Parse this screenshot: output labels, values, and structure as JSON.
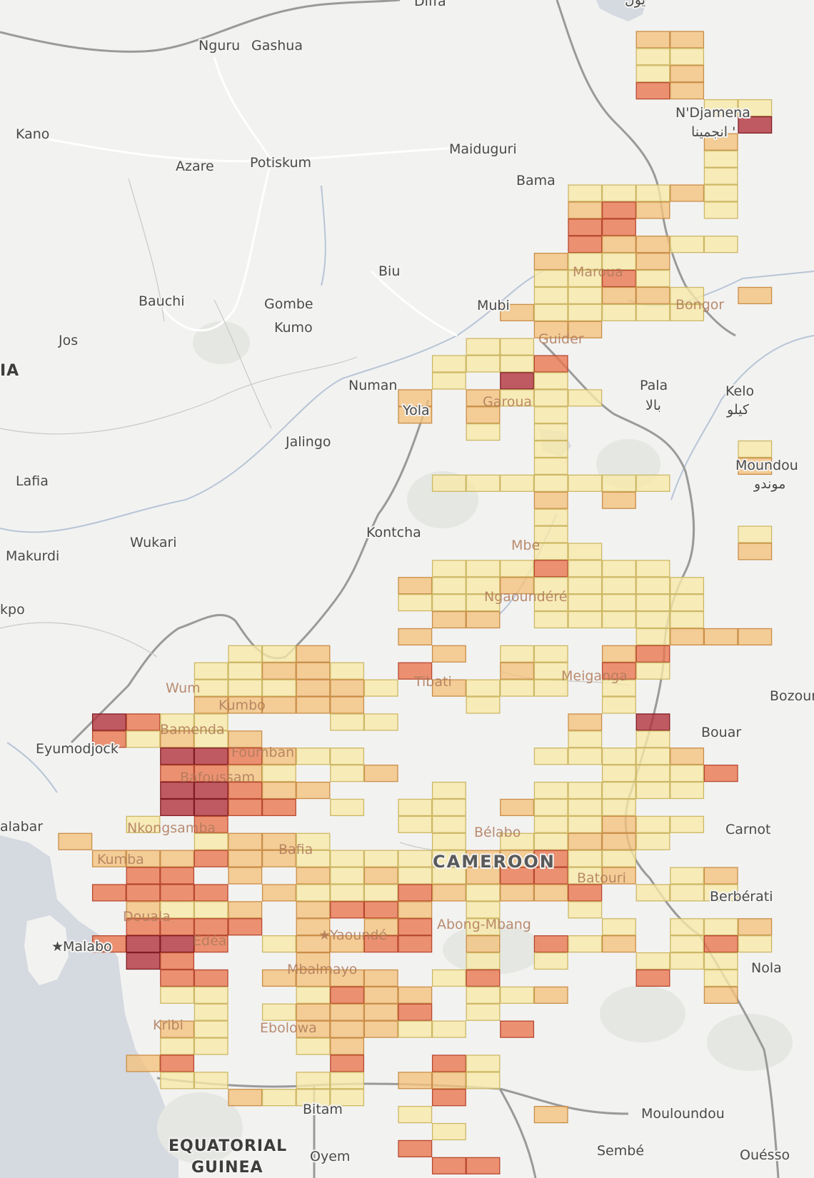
{
  "map": {
    "colors": {
      "land": "#f2f2f1",
      "water": "#d5d9e0",
      "border": "#9a9a9a",
      "river": "#b8c5d6",
      "road": "#ffffff",
      "scale": [
        "#f9e9a8",
        "#f4c27c",
        "#e9764e",
        "#b2303a"
      ],
      "cell_stroke": [
        "#cdb866",
        "#c98e48",
        "#b8482f",
        "#7f1e24"
      ]
    },
    "labels": {
      "nguru": "Nguru",
      "gashua": "Gashua",
      "kano": "Kano",
      "azare": "Azare",
      "potiskum": "Potiskum",
      "maiduguri": "Maiduguri",
      "bama": "Bama",
      "ndjamena": "N'Djamena",
      "ndjamena_ar": "انجمينا '",
      "biu": "Biu",
      "bauchi": "Bauchi",
      "gombe": "Gombe",
      "kumo": "Kumo",
      "jos": "Jos",
      "nia": "IA",
      "mubi": "Mubi",
      "maroua": "Maroua",
      "bongor": "Bongor",
      "guider": "Guider",
      "numan": "Numan",
      "yola": "Yola",
      "garoua": "Garoua",
      "pala": "Pala",
      "pala_ar": "بالا",
      "kelo": "Kelo",
      "kelo_ar": "كيلو",
      "jalingo": "Jalingo",
      "lafia": "Lafia",
      "moundou": "Moundou",
      "moundou_ar": "موندو",
      "kontcha": "Kontcha",
      "wukari": "Wukari",
      "makurdi": "Makurdi",
      "mbe": "Mbe",
      "ngaoundere": "Ngaoundéré",
      "kpo": "kpo",
      "tibati": "Tibati",
      "meiganga": "Meiganga",
      "wum": "Wum",
      "kumbo": "Kumbo",
      "bozoum": "Bozoum",
      "bamenda": "Bamenda",
      "eyumodjock": "Eyumodjock",
      "bouar": "Bouar",
      "foumban": "Foumban",
      "bafoussam": "Bafoussam",
      "calabar": "alabar",
      "nkongsamba": "Nkongsamba",
      "belabo": "Bélabo",
      "carnot": "Carnot",
      "kumba": "Kumba",
      "bafia": "Bafia",
      "cameroon": "CAMEROON",
      "batouri": "Batouri",
      "berberati": "Berbérati",
      "douala": "Douala",
      "malabo": "Malabo",
      "edea": "Edéa",
      "yaounde": "Yaoundé",
      "abong_mbang": "Abong-Mbang",
      "nola": "Nola",
      "mbalmayo": "Mbalmayo",
      "kribi": "Kribi",
      "ebolowa": "Ebolowa",
      "bitam": "Bitam",
      "mouloundou": "Mouloundou",
      "equatorial": "EQUATORIAL",
      "guinea": "GUINEA",
      "oyem": "Oyem",
      "sembe": "Sembé",
      "ouesso": "Ouésso",
      "diffa": "Diffa",
      "top_ar": "يول"
    },
    "grid_rows": [
      "                 ................ 11",
      "                 ................ 00",
      "                 ................ 01",
      "                 ................ 21",
      "                 ................ ..00",
      "                 ................ ...3",
      "                 ................ ..1",
      "                 ................ ..0",
      "                 ................ ..0",
      "                 ...............00010",
      "                 ...............121.0",
      "                 ...............22..",
      "                 ...............21100",
      "                 ..............1001",
      "                 ..............0020",
      "                 ..............00110.1",
      "                 .............100000",
      "                 ..............11",
      "                 ............00",
      "                 ...........0002",
      "                 ...........0.30",
      "                 ..........1.1000",
      "                 ..........1.1.0",
      "                 ............0.0",
      "                 ..............0.....0",
      "                 ..............0.....1",
      "                 ...........0000000",
      "                 ..............1.1",
      "                 ..............0",
      "                 ..............0.....0",
      "                 ..............00 ...1",
      "                 ...........0002000",
      "                 ..........100100000",
      "                 ..........000.00000",
      "                 ...........11.00000",
      "                 ..........1......0111",
      "                 .....001...1.00.12",
      "                 ....00110.2..10.20",
      "                 ....000110.1000.0",
      "                 ....11111...0...0",
      "                 .3200...00.....1.3",
      "                 .20101.........0.0",
      "                 ...332100.....00001",
      "                 ...2210.01......0002",
      "                 ...33211...0..00000",
      "                 ...3322.0.00.1000",
      "                 ..0.2.....00..00100",
      "                 1...0110...0.00110",
      "                 .1112110000011200",
      "                 ..22.1.1010012201.01",
      "                 .2222.1000210112.000",
      "                 ..1001.1221.0..0",
      "                 ..2222.1.12.0...0.001",
      "                 .2332.01122.1.201.020",
      "                 ..32...1....0.0..000",
      "                 ...22.1111.02....2.0",
      "                 ...00..0211.001....1",
      "                 ....0.01112.0",
      "                 ...10..11100.2",
      "                 ...00..01",
      "                 ..12....2..20",
      "                 ...00..00.110",
      "                 .....1000..2",
      "                 ..........0...1",
      "                 ...........0",
      "                 ..........2",
      "                 ...........22"
    ]
  }
}
